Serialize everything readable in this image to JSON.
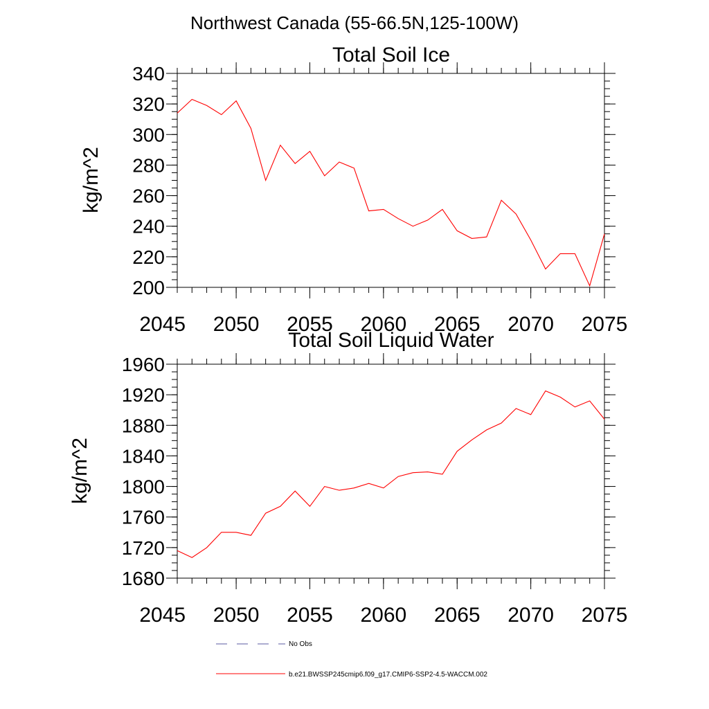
{
  "figure": {
    "title": "Northwest Canada (55-66.5N,125-100W)"
  },
  "chart_data": [
    {
      "type": "line",
      "title": "Total Soil Ice",
      "xlabel": "",
      "ylabel": "kg/m^2",
      "xlim": [
        2046,
        2075
      ],
      "ylim": [
        200,
        340
      ],
      "xticks": [
        2045,
        2050,
        2055,
        2060,
        2065,
        2070,
        2075
      ],
      "yticks": [
        200,
        220,
        240,
        260,
        280,
        300,
        320,
        340
      ],
      "grid": false,
      "series": [
        {
          "name": "b.e21.BWSSP245cmip6.f09_g17.CMIP6-SSP2-4.5-WACCM.002",
          "color": "#ff0000",
          "x": [
            2046,
            2047,
            2048,
            2049,
            2050,
            2051,
            2052,
            2053,
            2054,
            2055,
            2056,
            2057,
            2058,
            2059,
            2060,
            2061,
            2062,
            2063,
            2064,
            2065,
            2066,
            2067,
            2068,
            2069,
            2070,
            2071,
            2072,
            2073,
            2074,
            2075
          ],
          "y": [
            314,
            323,
            319,
            313,
            322,
            304,
            270,
            293,
            281,
            289,
            273,
            282,
            278,
            250,
            251,
            245,
            240,
            244,
            251,
            237,
            232,
            233,
            257,
            248,
            231,
            212,
            222,
            222,
            201,
            235
          ]
        }
      ]
    },
    {
      "type": "line",
      "title": "Total Soil Liquid Water",
      "xlabel": "",
      "ylabel": "kg/m^2",
      "xlim": [
        2046,
        2075
      ],
      "ylim": [
        1680,
        1960
      ],
      "xticks": [
        2045,
        2050,
        2055,
        2060,
        2065,
        2070,
        2075
      ],
      "yticks": [
        1680,
        1720,
        1760,
        1800,
        1840,
        1880,
        1920,
        1960
      ],
      "grid": false,
      "series": [
        {
          "name": "b.e21.BWSSP245cmip6.f09_g17.CMIP6-SSP2-4.5-WACCM.002",
          "color": "#ff0000",
          "x": [
            2046,
            2047,
            2048,
            2049,
            2050,
            2051,
            2052,
            2053,
            2054,
            2055,
            2056,
            2057,
            2058,
            2059,
            2060,
            2061,
            2062,
            2063,
            2064,
            2065,
            2066,
            2067,
            2068,
            2069,
            2070,
            2071,
            2072,
            2073,
            2074,
            2075
          ],
          "y": [
            1716,
            1707,
            1720,
            1740,
            1740,
            1736,
            1765,
            1774,
            1794,
            1774,
            1800,
            1795,
            1798,
            1804,
            1798,
            1813,
            1818,
            1819,
            1816,
            1846,
            1861,
            1874,
            1883,
            1902,
            1894,
            1925,
            1917,
            1904,
            1912,
            1888
          ]
        }
      ]
    }
  ],
  "legend": {
    "placement": "bottom-center",
    "entries": [
      {
        "label": "No Obs",
        "color": "#5a5aa0",
        "style": "dashed"
      },
      {
        "label": "b.e21.BWSSP245cmip6.f09_g17.CMIP6-SSP2-4.5-WACCM.002",
        "color": "#ff0000",
        "style": "solid"
      }
    ]
  }
}
